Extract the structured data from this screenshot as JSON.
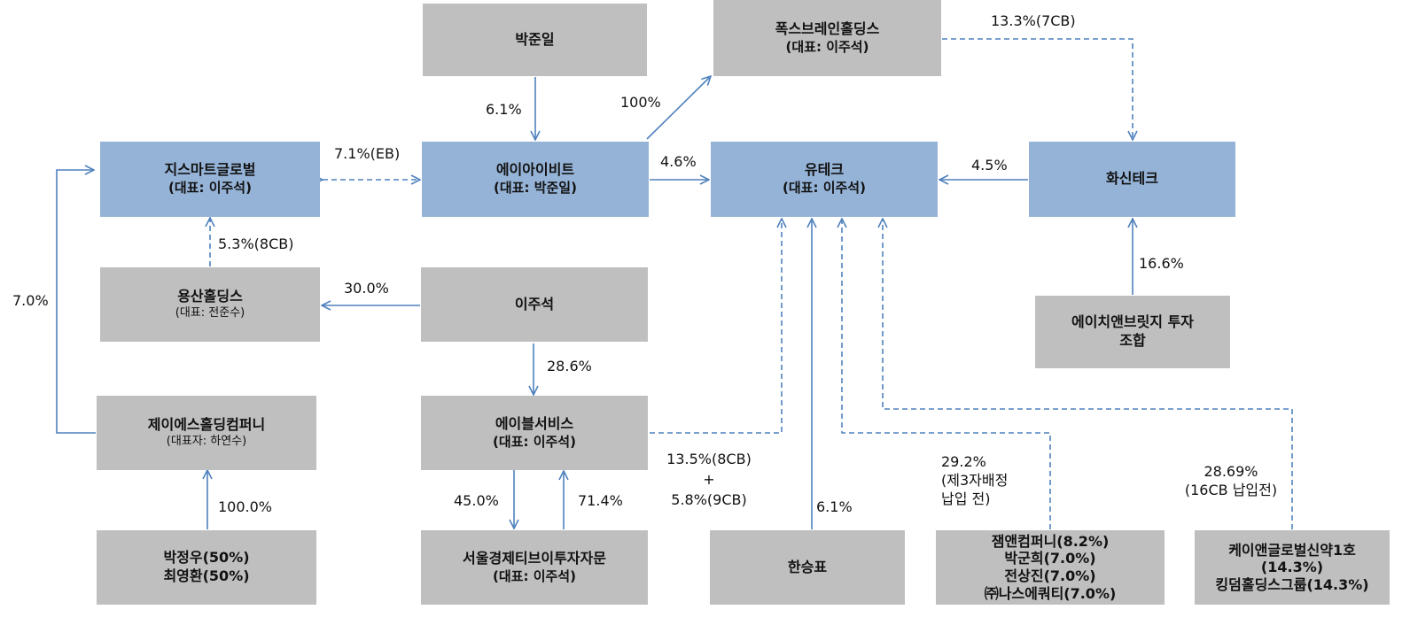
{
  "colors": {
    "gray_box": "#bfbfbf",
    "blue_box": "#95b3d7",
    "line": "#4f81bd"
  },
  "nodes": {
    "park_junil": {
      "name": "박준일"
    },
    "foxbrain": {
      "name": "폭스브레인홀딩스",
      "rep": "(대표: 이주석)"
    },
    "gsmart": {
      "name": "지스마트글로벌",
      "rep": "(대표: 이주석)"
    },
    "aiibit": {
      "name": "에이아이비트",
      "rep": "(대표: 박준일)"
    },
    "utech": {
      "name": "유테크",
      "rep": "(대표: 이주석)"
    },
    "hwashin": {
      "name": "화신테크"
    },
    "yongsan": {
      "name": "용산홀딩스",
      "rep": "(대표: 전준수)"
    },
    "lee_juseok": {
      "name": "이주석"
    },
    "hnb": {
      "line1": "에이치앤브릿지 투자",
      "line2": "조합"
    },
    "js_holding": {
      "name": "제이에스홀딩컴퍼니",
      "rep": "(대표자: 하연수)"
    },
    "able": {
      "name": "에이블서비스",
      "rep": "(대표: 이주석)"
    },
    "park_choi": {
      "line1": "박정우(50%)",
      "line2": "최영환(50%)"
    },
    "seoul": {
      "name": "서울경제티브이투자자문",
      "rep": "(대표: 이주석)"
    },
    "han": {
      "name": "한승표"
    },
    "jam": {
      "line1": "잼앤컴퍼니(8.2%)",
      "line2": "박군희(7.0%)",
      "line3": "전상진(7.0%)",
      "line4": "㈜나스에쿼티(7.0%)"
    },
    "kand": {
      "line1": "케이앤글로벌신약1호",
      "line2": "(14.3%)",
      "line3": "킹덤홀딩스그룹(14.3%)"
    }
  },
  "edges": {
    "park_to_aiibit": "6.1%",
    "aiibit_to_foxbrain": "100%",
    "foxbrain_to_hwashin": "13.3%(7CB)",
    "gsmart_aiibit": "7.1%(EB)",
    "aiibit_to_utech": "4.6%",
    "hwashin_to_utech": "4.5%",
    "yongsan_to_gsmart": "5.3%(8CB)",
    "js_to_gsmart": "7.0%",
    "lee_to_yongsan": "30.0%",
    "hnb_to_hwashin": "16.6%",
    "lee_to_able": "28.6%",
    "able_to_utech_line1": "13.5%(8CB)",
    "able_to_utech_line2": "+",
    "able_to_utech_line3": "5.8%(9CB)",
    "park_choi_to_js": "100.0%",
    "able_to_seoul": "45.0%",
    "seoul_to_able": "71.4%",
    "han_to_utech": "6.1%",
    "jam_line1": "29.2%",
    "jam_line2": "(제3자배정",
    "jam_line3": "납입 전)",
    "kand_line1": "28.69%",
    "kand_line2": "(16CB 납입전)"
  }
}
